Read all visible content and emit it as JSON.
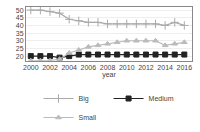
{
  "chart_data": {
    "type": "line",
    "x_label": "year",
    "x": [
      2000,
      2001,
      2002,
      2003,
      2004,
      2005,
      2006,
      2007,
      2008,
      2009,
      2010,
      2011,
      2012,
      2013,
      2014,
      2015,
      2016
    ],
    "series": [
      {
        "name": "Big",
        "color": "#aaaaaa",
        "marker": "plus",
        "line_style": "solid",
        "values": [
          50,
          50,
          49,
          48,
          44,
          43,
          42,
          42,
          41,
          41,
          41,
          41,
          41,
          41,
          40,
          42,
          40
        ]
      },
      {
        "name": "Medium",
        "color": "#222222",
        "marker": "square",
        "line_style": "solid",
        "values": [
          20,
          20,
          20,
          19,
          20,
          21,
          21,
          21,
          21,
          21,
          21,
          21,
          21,
          21,
          21,
          21,
          21
        ]
      },
      {
        "name": "Small",
        "color": "#bbbbbb",
        "marker": "triangle",
        "line_style": "solid",
        "values": [
          17,
          17,
          17,
          18,
          22,
          24,
          26,
          27,
          28,
          29,
          30,
          30,
          30,
          30,
          27,
          28,
          29
        ]
      }
    ],
    "xlim": [
      1999.5,
      2016.8
    ],
    "xticks": [
      2000,
      2002,
      2004,
      2006,
      2008,
      2010,
      2012,
      2014,
      2016
    ],
    "ylim": [
      17,
      52
    ],
    "yticks": [
      20,
      25,
      30,
      35,
      40,
      45,
      50
    ],
    "grid": true,
    "legend": "bottom"
  }
}
